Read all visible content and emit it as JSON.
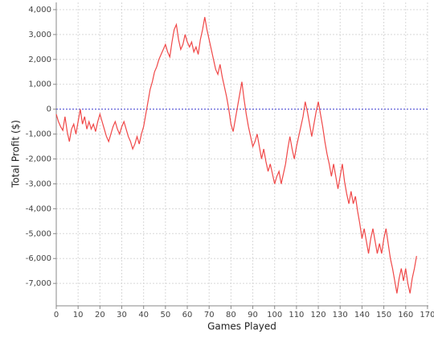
{
  "chart_data": {
    "type": "line",
    "x_label": "Games Played",
    "y_label": "Total Profit ($)",
    "color": "#f04848",
    "zero_line_color": "#4848d8",
    "grid": true,
    "xlim": [
      0,
      170.4
    ],
    "ylim": [
      -7900,
      4290
    ],
    "xticks": [
      0,
      10,
      20,
      30,
      40,
      50,
      60,
      70,
      80,
      90,
      100,
      110,
      120,
      130,
      140,
      150,
      160,
      170
    ],
    "yticks": [
      {
        "value": -7000,
        "label": "-7,000"
      },
      {
        "value": -6000,
        "label": "-6,000"
      },
      {
        "value": -5000,
        "label": "-5,000"
      },
      {
        "value": -4000,
        "label": "-4,000"
      },
      {
        "value": -3000,
        "label": "-3,000"
      },
      {
        "value": -2000,
        "label": "-2,000"
      },
      {
        "value": -1000,
        "label": "-1,000"
      },
      0,
      {
        "value": 1000,
        "label": "1,000"
      },
      {
        "value": 2000,
        "label": "2,000"
      },
      {
        "value": 3000,
        "label": "3,000"
      },
      {
        "value": 4000,
        "label": "4,000"
      }
    ],
    "x": [
      0,
      1,
      2,
      3,
      4,
      5,
      6,
      7,
      8,
      9,
      10,
      11,
      12,
      13,
      14,
      15,
      16,
      17,
      18,
      19,
      20,
      21,
      22,
      23,
      24,
      25,
      26,
      27,
      28,
      29,
      30,
      31,
      32,
      33,
      34,
      35,
      36,
      37,
      38,
      39,
      40,
      41,
      42,
      43,
      44,
      45,
      46,
      47,
      48,
      49,
      50,
      51,
      52,
      53,
      54,
      55,
      56,
      57,
      58,
      59,
      60,
      61,
      62,
      63,
      64,
      65,
      66,
      67,
      68,
      69,
      70,
      71,
      72,
      73,
      74,
      75,
      76,
      77,
      78,
      79,
      80,
      81,
      82,
      83,
      84,
      85,
      86,
      87,
      88,
      89,
      90,
      91,
      92,
      93,
      94,
      95,
      96,
      97,
      98,
      99,
      100,
      101,
      102,
      103,
      104,
      105,
      106,
      107,
      108,
      109,
      110,
      111,
      112,
      113,
      114,
      115,
      116,
      117,
      118,
      119,
      120,
      121,
      122,
      123,
      124,
      125,
      126,
      127,
      128,
      129,
      130,
      131,
      132,
      133,
      134,
      135,
      136,
      137,
      138,
      139,
      140,
      141,
      142,
      143,
      144,
      145,
      146,
      147,
      148,
      149,
      150,
      151,
      152,
      153,
      154,
      155,
      156,
      157,
      158,
      159,
      160,
      161,
      162,
      163,
      164,
      165
    ],
    "values": [
      -200,
      -500,
      -700,
      -850,
      -300,
      -900,
      -1300,
      -800,
      -600,
      -1000,
      -500,
      0,
      -600,
      -300,
      -800,
      -500,
      -800,
      -600,
      -900,
      -500,
      -200,
      -500,
      -800,
      -1100,
      -1300,
      -1000,
      -700,
      -500,
      -800,
      -1000,
      -700,
      -500,
      -800,
      -1100,
      -1300,
      -1600,
      -1400,
      -1100,
      -1400,
      -1000,
      -700,
      -200,
      300,
      800,
      1100,
      1500,
      1700,
      2000,
      2200,
      2400,
      2600,
      2300,
      2100,
      2700,
      3200,
      3400,
      2800,
      2400,
      2600,
      3000,
      2700,
      2500,
      2700,
      2300,
      2500,
      2200,
      2800,
      3200,
      3700,
      3200,
      2800,
      2400,
      2000,
      1600,
      1400,
      1800,
      1300,
      900,
      500,
      0,
      -600,
      -900,
      -400,
      100,
      600,
      1100,
      400,
      -200,
      -700,
      -1100,
      -1500,
      -1300,
      -1000,
      -1500,
      -2000,
      -1600,
      -2100,
      -2500,
      -2200,
      -2600,
      -3000,
      -2700,
      -2500,
      -3000,
      -2600,
      -2200,
      -1600,
      -1100,
      -1600,
      -2000,
      -1500,
      -1100,
      -700,
      -300,
      300,
      -100,
      -600,
      -1100,
      -600,
      -100,
      300,
      -200,
      -700,
      -1300,
      -1800,
      -2200,
      -2700,
      -2200,
      -2700,
      -3200,
      -2700,
      -2200,
      -2900,
      -3400,
      -3800,
      -3300,
      -3800,
      -3500,
      -4100,
      -4600,
      -5200,
      -4800,
      -5300,
      -5800,
      -5200,
      -4800,
      -5300,
      -5800,
      -5400,
      -5800,
      -5200,
      -4800,
      -5400,
      -6000,
      -6400,
      -6900,
      -7400,
      -6800,
      -6400,
      -6900,
      -6400,
      -7000,
      -7400,
      -6800,
      -6400,
      -5900
    ]
  }
}
